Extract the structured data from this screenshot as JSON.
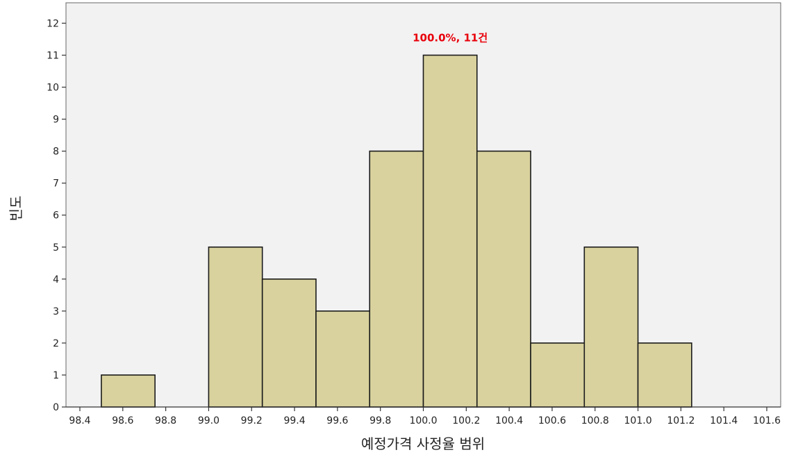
{
  "chart_data": {
    "type": "bar",
    "xlabel": "예정가격 사정율 범위",
    "ylabel": "빈도",
    "xlim": [
      98.4,
      101.6
    ],
    "ylim": [
      0,
      12.5
    ],
    "bin_width": 0.25,
    "x_ticks": [
      "98.4",
      "98.6",
      "98.8",
      "99.0",
      "99.2",
      "99.4",
      "99.6",
      "99.8",
      "100.0",
      "100.2",
      "100.4",
      "100.6",
      "100.8",
      "101.0",
      "101.2",
      "101.4",
      "101.6"
    ],
    "y_ticks": [
      "0",
      "1",
      "2",
      "3",
      "4",
      "5",
      "6",
      "7",
      "8",
      "9",
      "10",
      "11",
      "12"
    ],
    "bins": [
      {
        "start": 98.5,
        "end": 98.75,
        "count": 1
      },
      {
        "start": 99.0,
        "end": 99.25,
        "count": 5
      },
      {
        "start": 99.25,
        "end": 99.5,
        "count": 4
      },
      {
        "start": 99.5,
        "end": 99.75,
        "count": 3
      },
      {
        "start": 99.75,
        "end": 100.0,
        "count": 8
      },
      {
        "start": 100.0,
        "end": 100.25,
        "count": 11
      },
      {
        "start": 100.25,
        "end": 100.5,
        "count": 8
      },
      {
        "start": 100.5,
        "end": 100.75,
        "count": 2
      },
      {
        "start": 100.75,
        "end": 101.0,
        "count": 5
      },
      {
        "start": 101.0,
        "end": 101.25,
        "count": 2
      }
    ],
    "annotation": {
      "text": "100.0%, 11건",
      "bin_index": 5
    },
    "grid": false,
    "legend": "none",
    "colors": {
      "bar_fill": "#d9d29e",
      "bar_stroke": "#1a1a1a",
      "plot_bg": "#f2f2f2",
      "annotation": "#e8000b"
    }
  }
}
